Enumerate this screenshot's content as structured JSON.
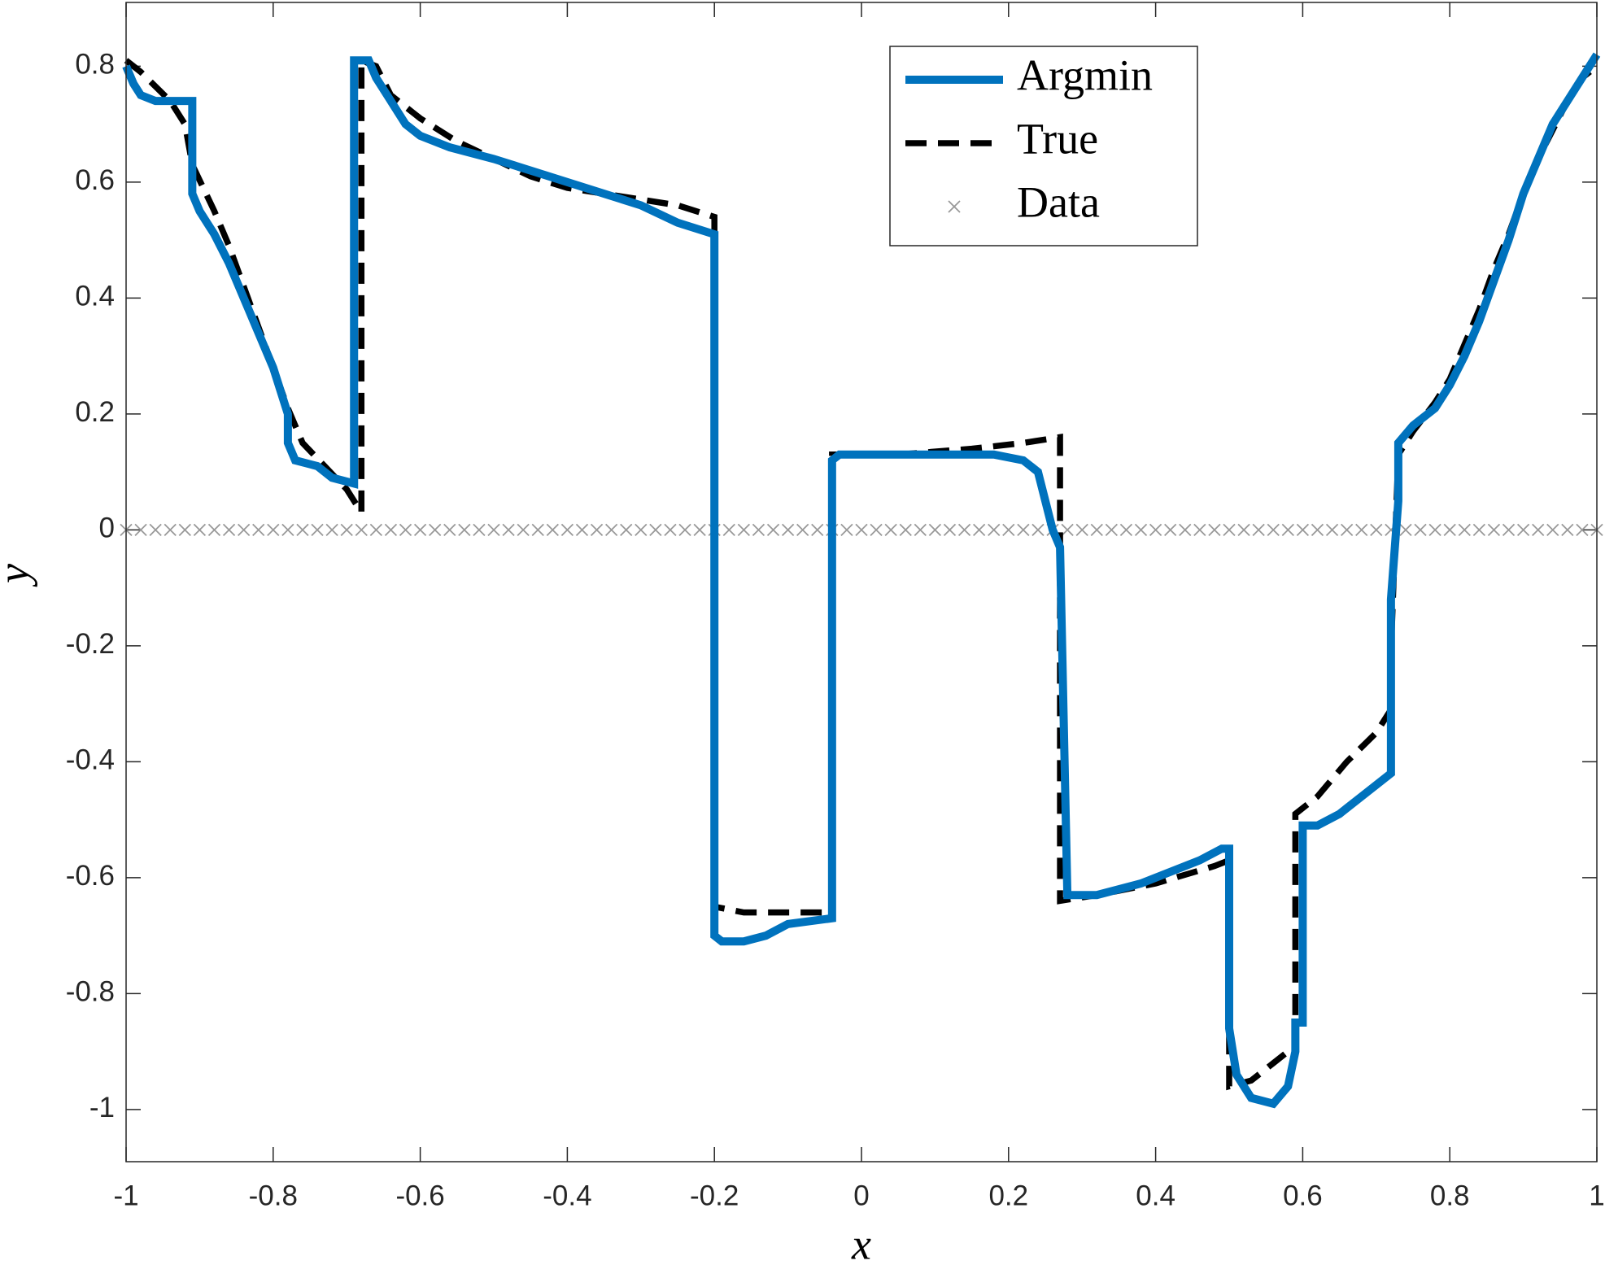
{
  "chart_data": {
    "type": "line",
    "xlabel": "x",
    "ylabel": "y",
    "xlim": [
      -1,
      1
    ],
    "ylim": [
      -1.09,
      0.91
    ],
    "xticks": [
      -1,
      -0.8,
      -0.6,
      -0.4,
      -0.2,
      0,
      0.2,
      0.4,
      0.6,
      0.8,
      1
    ],
    "yticks": [
      -1,
      -0.8,
      -0.6,
      -0.4,
      -0.2,
      0,
      0.2,
      0.4,
      0.6,
      0.8
    ],
    "legend": "top-right",
    "series": [
      {
        "name": "Argmin",
        "color": "#0072bd",
        "style": "solid",
        "x": [
          -1,
          -0.99,
          -0.98,
          -0.96,
          -0.91,
          -0.91,
          -0.9,
          -0.88,
          -0.86,
          -0.84,
          -0.82,
          -0.8,
          -0.78,
          -0.78,
          -0.77,
          -0.74,
          -0.72,
          -0.69,
          -0.69,
          -0.67,
          -0.66,
          -0.64,
          -0.62,
          -0.6,
          -0.56,
          -0.5,
          -0.45,
          -0.4,
          -0.35,
          -0.3,
          -0.25,
          -0.2,
          -0.2,
          -0.19,
          -0.16,
          -0.13,
          -0.1,
          -0.04,
          -0.04,
          -0.03,
          0.18,
          0.22,
          0.24,
          0.25,
          0.26,
          0.27,
          0.28,
          0.32,
          0.38,
          0.42,
          0.46,
          0.49,
          0.5,
          0.5,
          0.51,
          0.53,
          0.56,
          0.58,
          0.59,
          0.59,
          0.6,
          0.6,
          0.62,
          0.65,
          0.68,
          0.7,
          0.72,
          0.72,
          0.73,
          0.73,
          0.75,
          0.78,
          0.8,
          0.82,
          0.84,
          0.86,
          0.88,
          0.9,
          0.92,
          0.94,
          0.96,
          0.98,
          1
        ],
        "values": [
          0.8,
          0.77,
          0.75,
          0.74,
          0.74,
          0.58,
          0.55,
          0.51,
          0.46,
          0.4,
          0.34,
          0.28,
          0.2,
          0.15,
          0.12,
          0.11,
          0.09,
          0.08,
          0.81,
          0.81,
          0.78,
          0.74,
          0.7,
          0.68,
          0.66,
          0.64,
          0.62,
          0.6,
          0.58,
          0.56,
          0.53,
          0.51,
          -0.7,
          -0.71,
          -0.71,
          -0.7,
          -0.68,
          -0.67,
          0.12,
          0.13,
          0.13,
          0.12,
          0.1,
          0.05,
          0,
          -0.03,
          -0.63,
          -0.63,
          -0.61,
          -0.59,
          -0.57,
          -0.55,
          -0.55,
          -0.86,
          -0.94,
          -0.98,
          -0.99,
          -0.96,
          -0.9,
          -0.85,
          -0.85,
          -0.51,
          -0.51,
          -0.49,
          -0.46,
          -0.44,
          -0.42,
          -0.12,
          0.05,
          0.15,
          0.18,
          0.21,
          0.25,
          0.3,
          0.36,
          0.43,
          0.5,
          0.58,
          0.64,
          0.7,
          0.74,
          0.78,
          0.82
        ]
      },
      {
        "name": "True",
        "color": "#000000",
        "style": "dashed",
        "x": [
          -1,
          -0.98,
          -0.94,
          -0.92,
          -0.91,
          -0.88,
          -0.86,
          -0.84,
          -0.82,
          -0.8,
          -0.78,
          -0.76,
          -0.73,
          -0.7,
          -0.68,
          -0.68,
          -0.66,
          -0.64,
          -0.6,
          -0.55,
          -0.5,
          -0.45,
          -0.4,
          -0.3,
          -0.25,
          -0.2,
          -0.2,
          -0.16,
          -0.1,
          -0.04,
          -0.04,
          0.05,
          0.15,
          0.22,
          0.27,
          0.27,
          0.32,
          0.4,
          0.48,
          0.5,
          0.5,
          0.53,
          0.56,
          0.59,
          0.59,
          0.62,
          0.66,
          0.7,
          0.72,
          0.72,
          0.73,
          0.75,
          0.78,
          0.8,
          0.82,
          0.84,
          0.86,
          0.88,
          0.9,
          0.92,
          0.94,
          0.96,
          0.98,
          1
        ],
        "values": [
          0.81,
          0.79,
          0.74,
          0.7,
          0.63,
          0.55,
          0.49,
          0.42,
          0.35,
          0.28,
          0.21,
          0.15,
          0.11,
          0.07,
          0.03,
          0.81,
          0.8,
          0.75,
          0.71,
          0.67,
          0.64,
          0.61,
          0.59,
          0.57,
          0.56,
          0.54,
          -0.65,
          -0.66,
          -0.66,
          -0.66,
          0.13,
          0.13,
          0.14,
          0.15,
          0.16,
          -0.64,
          -0.63,
          -0.61,
          -0.58,
          -0.57,
          -0.96,
          -0.95,
          -0.92,
          -0.89,
          -0.49,
          -0.46,
          -0.4,
          -0.35,
          -0.31,
          -0.21,
          0.13,
          0.17,
          0.22,
          0.26,
          0.32,
          0.38,
          0.45,
          0.51,
          0.58,
          0.64,
          0.69,
          0.74,
          0.78,
          0.8
        ]
      },
      {
        "name": "Data",
        "color": "#999999",
        "style": "marker-x",
        "x": [
          -1,
          -0.98,
          -0.96,
          -0.94,
          -0.92,
          -0.9,
          -0.88,
          -0.86,
          -0.84,
          -0.82,
          -0.8,
          -0.78,
          -0.76,
          -0.74,
          -0.72,
          -0.7,
          -0.68,
          -0.66,
          -0.64,
          -0.62,
          -0.6,
          -0.58,
          -0.56,
          -0.54,
          -0.52,
          -0.5,
          -0.48,
          -0.46,
          -0.44,
          -0.42,
          -0.4,
          -0.38,
          -0.36,
          -0.34,
          -0.32,
          -0.3,
          -0.28,
          -0.26,
          -0.24,
          -0.22,
          -0.2,
          -0.18,
          -0.16,
          -0.14,
          -0.12,
          -0.1,
          -0.08,
          -0.06,
          -0.04,
          -0.02,
          0,
          0.02,
          0.04,
          0.06,
          0.08,
          0.1,
          0.12,
          0.14,
          0.16,
          0.18,
          0.2,
          0.22,
          0.24,
          0.26,
          0.28,
          0.3,
          0.32,
          0.34,
          0.36,
          0.38,
          0.4,
          0.42,
          0.44,
          0.46,
          0.48,
          0.5,
          0.52,
          0.54,
          0.56,
          0.58,
          0.6,
          0.62,
          0.64,
          0.66,
          0.68,
          0.7,
          0.72,
          0.74,
          0.76,
          0.78,
          0.8,
          0.82,
          0.84,
          0.86,
          0.88,
          0.9,
          0.92,
          0.94,
          0.96,
          0.98,
          1
        ],
        "values": [
          0,
          0,
          0,
          0,
          0,
          0,
          0,
          0,
          0,
          0,
          0,
          0,
          0,
          0,
          0,
          0,
          0,
          0,
          0,
          0,
          0,
          0,
          0,
          0,
          0,
          0,
          0,
          0,
          0,
          0,
          0,
          0,
          0,
          0,
          0,
          0,
          0,
          0,
          0,
          0,
          0,
          0,
          0,
          0,
          0,
          0,
          0,
          0,
          0,
          0,
          0,
          0,
          0,
          0,
          0,
          0,
          0,
          0,
          0,
          0,
          0,
          0,
          0,
          0,
          0,
          0,
          0,
          0,
          0,
          0,
          0,
          0,
          0,
          0,
          0,
          0,
          0,
          0,
          0,
          0,
          0,
          0,
          0,
          0,
          0,
          0,
          0,
          0,
          0,
          0,
          0,
          0,
          0,
          0,
          0,
          0,
          0,
          0,
          0,
          0,
          0
        ]
      }
    ]
  }
}
